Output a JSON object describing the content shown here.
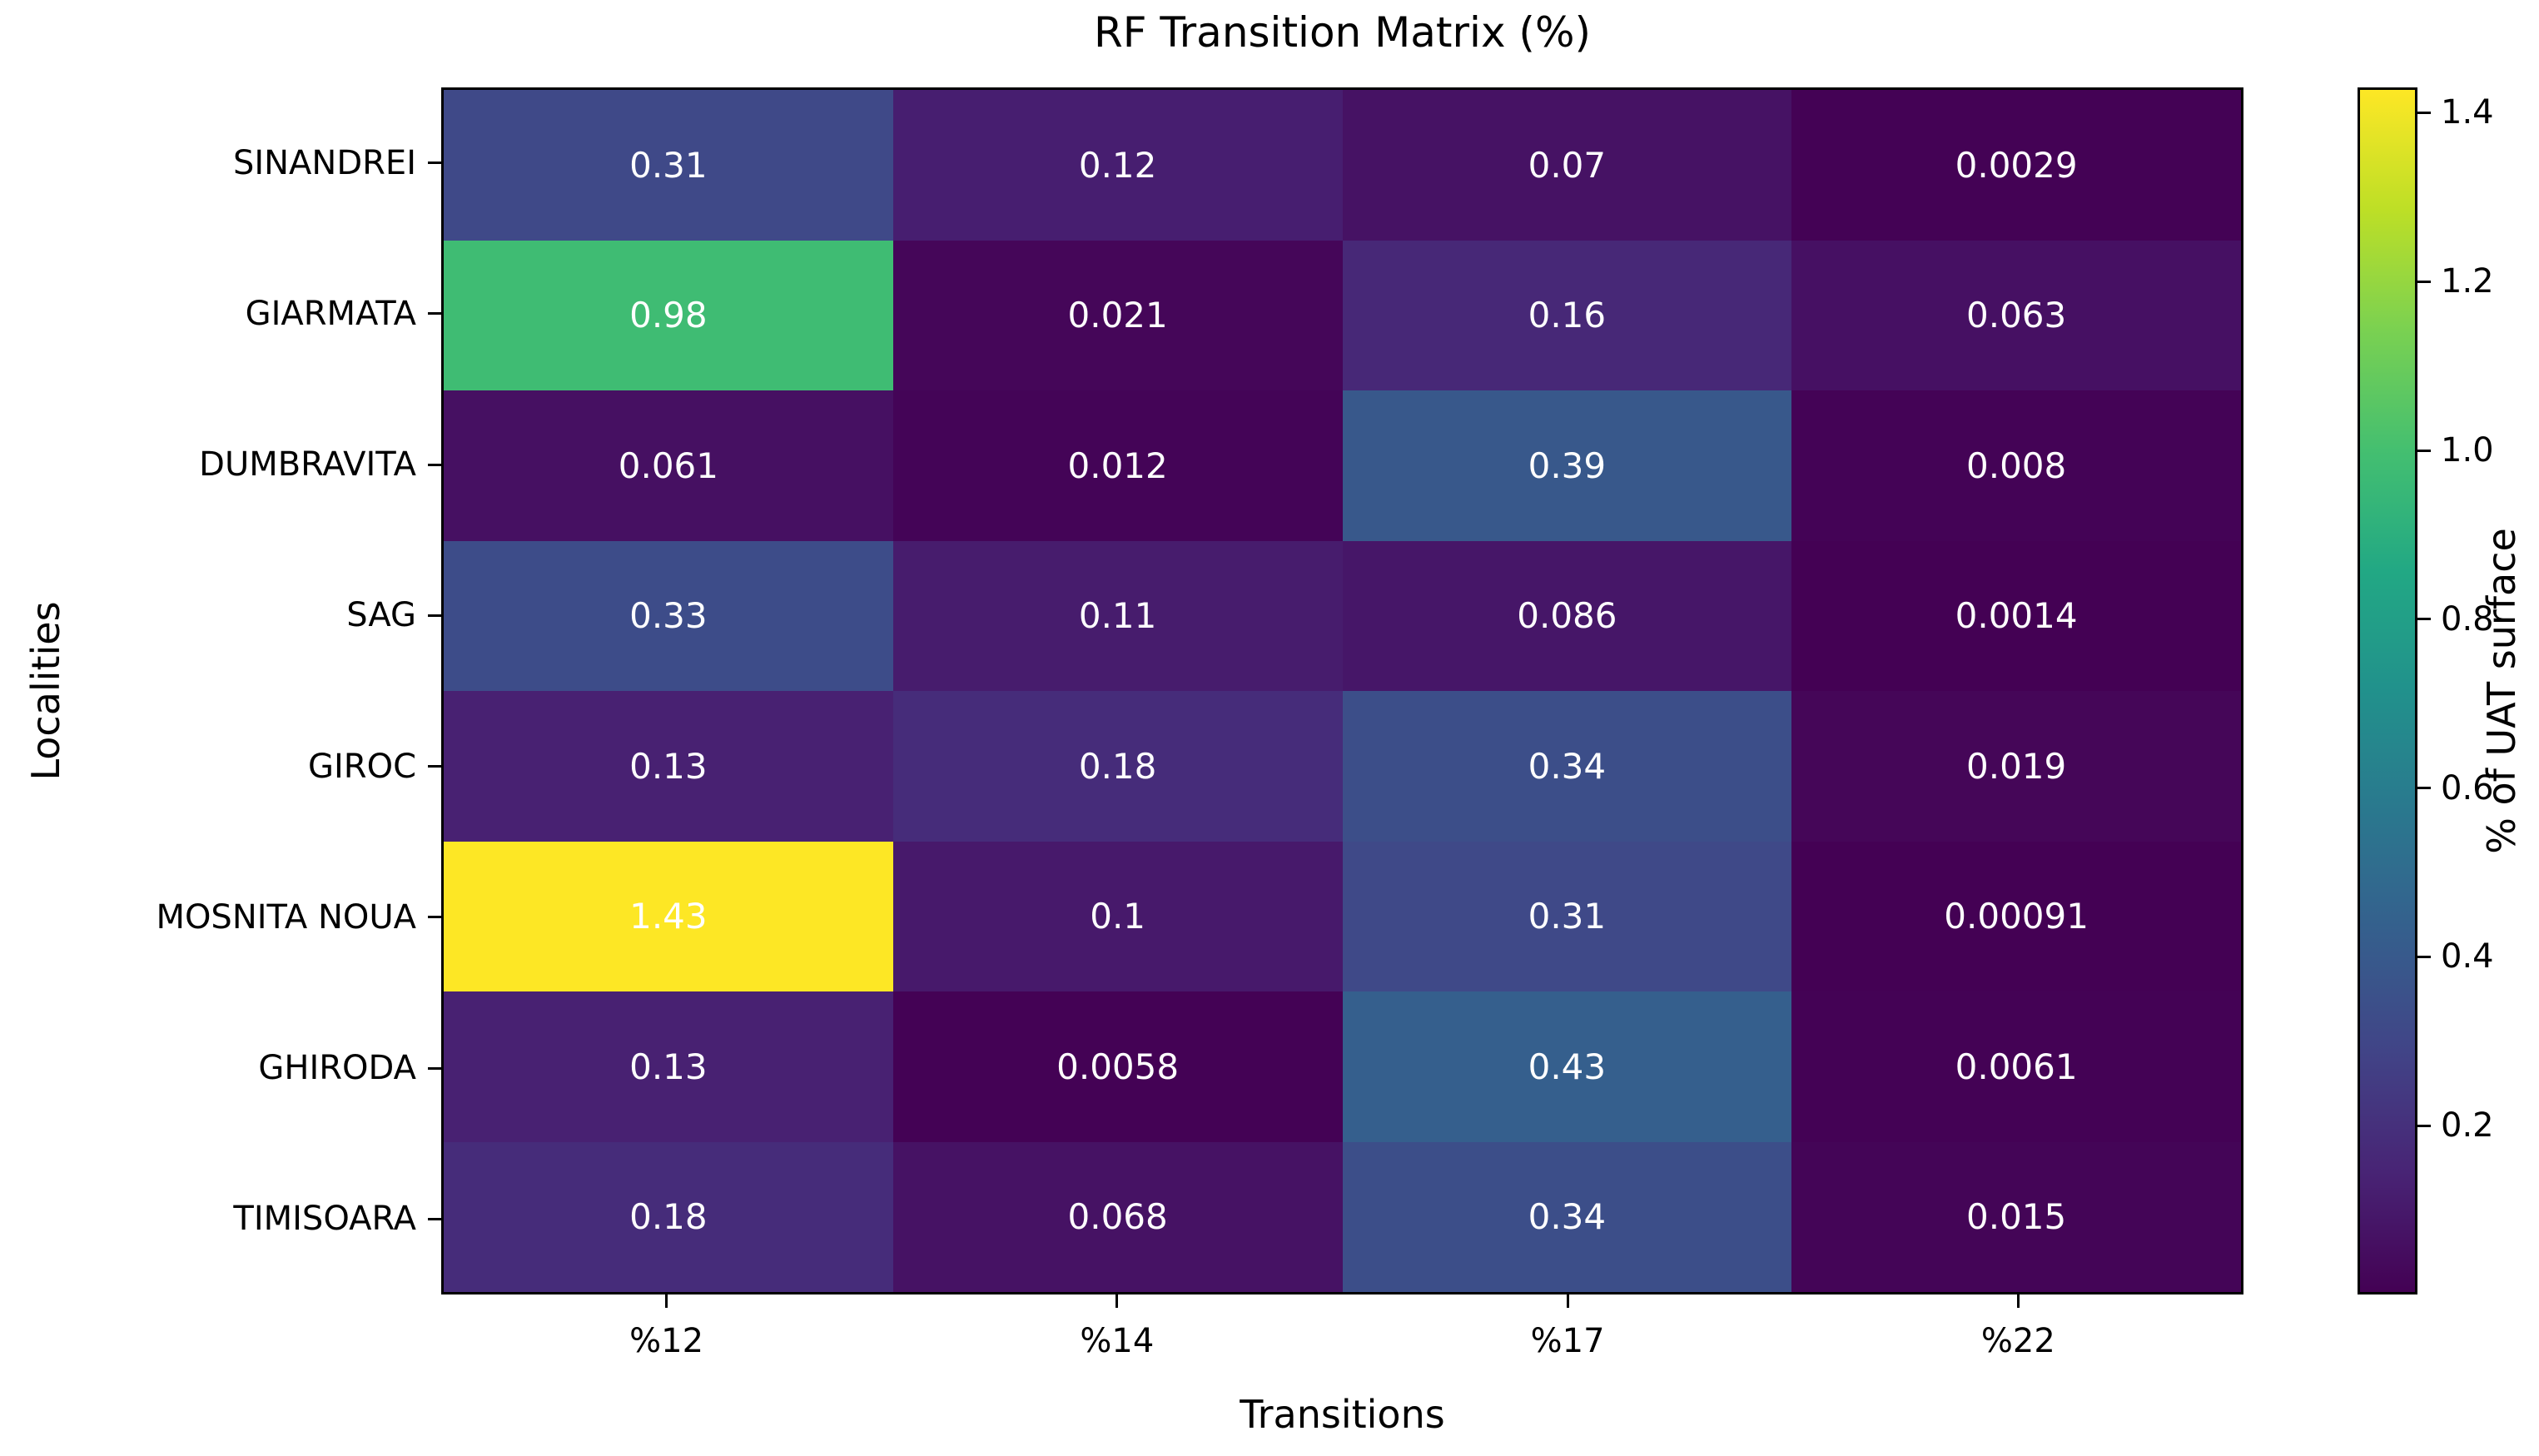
{
  "chart_data": {
    "type": "heatmap",
    "title": "RF Transition Matrix (%)",
    "xlabel": "Transitions",
    "ylabel": "Localities",
    "colorbar_label": "% of UAT surface",
    "colormap": "viridis",
    "vmin": 0,
    "vmax": 1.43,
    "rows": [
      "SINANDREI",
      "GIARMATA",
      "DUMBRAVITA",
      "SAG",
      "GIROC",
      "MOSNITA NOUA",
      "GHIRODA",
      "TIMISOARA"
    ],
    "columns": [
      "%12",
      "%14",
      "%17",
      "%22"
    ],
    "values": [
      [
        0.31,
        0.12,
        0.07,
        0.0029
      ],
      [
        0.98,
        0.021,
        0.16,
        0.063
      ],
      [
        0.061,
        0.012,
        0.39,
        0.008
      ],
      [
        0.33,
        0.11,
        0.086,
        0.0014
      ],
      [
        0.13,
        0.18,
        0.34,
        0.019
      ],
      [
        1.43,
        0.1,
        0.31,
        0.00091
      ],
      [
        0.13,
        0.0058,
        0.43,
        0.0061
      ],
      [
        0.18,
        0.068,
        0.34,
        0.015
      ]
    ],
    "cell_labels": [
      [
        "0.31",
        "0.12",
        "0.07",
        "0.0029"
      ],
      [
        "0.98",
        "0.021",
        "0.16",
        "0.063"
      ],
      [
        "0.061",
        "0.012",
        "0.39",
        "0.008"
      ],
      [
        "0.33",
        "0.11",
        "0.086",
        "0.0014"
      ],
      [
        "0.13",
        "0.18",
        "0.34",
        "0.019"
      ],
      [
        "1.43",
        "0.1",
        "0.31",
        "0.00091"
      ],
      [
        "0.13",
        "0.0058",
        "0.43",
        "0.0061"
      ],
      [
        "0.18",
        "0.068",
        "0.34",
        "0.015"
      ]
    ],
    "colorbar_ticks": [
      0.2,
      0.4,
      0.6,
      0.8,
      1.0,
      1.2,
      1.4
    ],
    "text_color": "#ffffff",
    "axis_color": "#000000",
    "background_color": "#ffffff",
    "legend_position": "right",
    "grid": false,
    "viridis_stops": [
      "#440154",
      "#482475",
      "#414487",
      "#355f8d",
      "#2a788e",
      "#21918c",
      "#22a884",
      "#44bf70",
      "#7ad151",
      "#bddf26",
      "#fde725"
    ]
  }
}
